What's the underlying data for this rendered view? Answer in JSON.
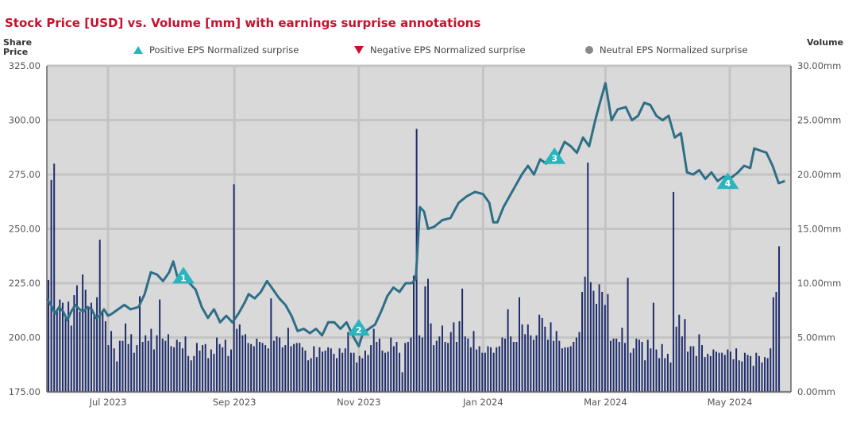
{
  "title": "Stock Price [USD] vs. Volume [mm] with earnings surprise annotations",
  "colors": {
    "title": "#c8102e",
    "price_line": "#2e6e87",
    "volume_bars": "#1f2d6b",
    "positive": "#2ab5bd",
    "negative": "#c8102e",
    "neutral": "#888888",
    "plot_bg": "#d9d9d9",
    "grid": "#c4c4c4"
  },
  "legend": {
    "positive": "Positive EPS Normalized surprise",
    "negative": "Negative EPS Normalized surprise",
    "neutral": "Neutral EPS Normalized surprise"
  },
  "chart_data": {
    "type": "line+bar",
    "title": "Stock Price [USD] vs. Volume [mm] with earnings surprise annotations",
    "y_left_label": "Share Price",
    "y_right_label": "Volume",
    "y_left_range": [
      175,
      325
    ],
    "y_right_range": [
      0,
      30
    ],
    "y_left_ticks": [
      "325.00",
      "300.00",
      "275.00",
      "250.00",
      "225.00",
      "200.00",
      "175.00"
    ],
    "y_right_ticks": [
      "30.00mm",
      "25.00mm",
      "20.00mm",
      "15.00mm",
      "10.00mm",
      "5.00mm",
      "0.00mm"
    ],
    "x_range": [
      "2023-06-01",
      "2024-05-31"
    ],
    "x_ticks": [
      {
        "date": "2023-07-01",
        "label": "Jul 2023"
      },
      {
        "date": "2023-09-01",
        "label": "Sep 2023"
      },
      {
        "date": "2023-11-01",
        "label": "Nov 2023"
      },
      {
        "date": "2024-01-01",
        "label": "Jan 2024"
      },
      {
        "date": "2024-03-01",
        "label": "Mar 2024"
      },
      {
        "date": "2024-05-01",
        "label": "May 2024"
      }
    ],
    "grid": true,
    "legend_position": "top",
    "series": [
      {
        "name": "Share Price",
        "kind": "line",
        "axis": "left",
        "points": [
          [
            "2023-06-01",
            218
          ],
          [
            "2023-06-03",
            215
          ],
          [
            "2023-06-05",
            211
          ],
          [
            "2023-06-07",
            214
          ],
          [
            "2023-06-09",
            212
          ],
          [
            "2023-06-11",
            208
          ],
          [
            "2023-06-13",
            212
          ],
          [
            "2023-06-15",
            215
          ],
          [
            "2023-06-17",
            213
          ],
          [
            "2023-06-19",
            212
          ],
          [
            "2023-06-21",
            214
          ],
          [
            "2023-06-23",
            213
          ],
          [
            "2023-06-25",
            209
          ],
          [
            "2023-06-27",
            210
          ],
          [
            "2023-06-29",
            213
          ],
          [
            "2023-07-01",
            210
          ],
          [
            "2023-07-03",
            211
          ],
          [
            "2023-07-06",
            213
          ],
          [
            "2023-07-09",
            215
          ],
          [
            "2023-07-12",
            213
          ],
          [
            "2023-07-16",
            214
          ],
          [
            "2023-07-19",
            220
          ],
          [
            "2023-07-22",
            230
          ],
          [
            "2023-07-25",
            229
          ],
          [
            "2023-07-28",
            226
          ],
          [
            "2023-07-31",
            230
          ],
          [
            "2023-08-02",
            235
          ],
          [
            "2023-08-04",
            228
          ],
          [
            "2023-08-06",
            227
          ],
          [
            "2023-08-08",
            228
          ],
          [
            "2023-08-10",
            225
          ],
          [
            "2023-08-13",
            222
          ],
          [
            "2023-08-16",
            214
          ],
          [
            "2023-08-19",
            209
          ],
          [
            "2023-08-22",
            213
          ],
          [
            "2023-08-25",
            207
          ],
          [
            "2023-08-28",
            210
          ],
          [
            "2023-08-31",
            207
          ],
          [
            "2023-09-03",
            211
          ],
          [
            "2023-09-06",
            216
          ],
          [
            "2023-09-08",
            220
          ],
          [
            "2023-09-11",
            218
          ],
          [
            "2023-09-14",
            221
          ],
          [
            "2023-09-17",
            226
          ],
          [
            "2023-09-20",
            222
          ],
          [
            "2023-09-23",
            218
          ],
          [
            "2023-09-26",
            215
          ],
          [
            "2023-09-29",
            210
          ],
          [
            "2023-10-02",
            203
          ],
          [
            "2023-10-05",
            204
          ],
          [
            "2023-10-08",
            202
          ],
          [
            "2023-10-11",
            204
          ],
          [
            "2023-10-14",
            201
          ],
          [
            "2023-10-17",
            207
          ],
          [
            "2023-10-20",
            207
          ],
          [
            "2023-10-23",
            204
          ],
          [
            "2023-10-26",
            207
          ],
          [
            "2023-10-29",
            201
          ],
          [
            "2023-11-01",
            196
          ],
          [
            "2023-11-03",
            202
          ],
          [
            "2023-11-06",
            204
          ],
          [
            "2023-11-09",
            206
          ],
          [
            "2023-11-12",
            212
          ],
          [
            "2023-11-15",
            219
          ],
          [
            "2023-11-18",
            223
          ],
          [
            "2023-11-21",
            221
          ],
          [
            "2023-11-24",
            225
          ],
          [
            "2023-11-27",
            225
          ],
          [
            "2023-11-29",
            227
          ],
          [
            "2023-12-01",
            260
          ],
          [
            "2023-12-03",
            258
          ],
          [
            "2023-12-05",
            250
          ],
          [
            "2023-12-08",
            251
          ],
          [
            "2023-12-12",
            254
          ],
          [
            "2023-12-16",
            255
          ],
          [
            "2023-12-20",
            262
          ],
          [
            "2023-12-24",
            265
          ],
          [
            "2023-12-28",
            267
          ],
          [
            "2024-01-01",
            266
          ],
          [
            "2024-01-04",
            262
          ],
          [
            "2024-01-06",
            253
          ],
          [
            "2024-01-08",
            253
          ],
          [
            "2024-01-11",
            260
          ],
          [
            "2024-01-14",
            265
          ],
          [
            "2024-01-17",
            270
          ],
          [
            "2024-01-20",
            275
          ],
          [
            "2024-01-23",
            279
          ],
          [
            "2024-01-26",
            275
          ],
          [
            "2024-01-29",
            282
          ],
          [
            "2024-02-01",
            280
          ],
          [
            "2024-02-04",
            285
          ],
          [
            "2024-02-07",
            284
          ],
          [
            "2024-02-10",
            290
          ],
          [
            "2024-02-13",
            288
          ],
          [
            "2024-02-16",
            285
          ],
          [
            "2024-02-19",
            292
          ],
          [
            "2024-02-22",
            288
          ],
          [
            "2024-02-25",
            300
          ],
          [
            "2024-02-27",
            307
          ],
          [
            "2024-03-01",
            317
          ],
          [
            "2024-03-04",
            300
          ],
          [
            "2024-03-07",
            305
          ],
          [
            "2024-03-11",
            306
          ],
          [
            "2024-03-14",
            300
          ],
          [
            "2024-03-17",
            302
          ],
          [
            "2024-03-20",
            308
          ],
          [
            "2024-03-23",
            307
          ],
          [
            "2024-03-26",
            302
          ],
          [
            "2024-03-29",
            300
          ],
          [
            "2024-04-01",
            302
          ],
          [
            "2024-04-04",
            292
          ],
          [
            "2024-04-07",
            294
          ],
          [
            "2024-04-10",
            276
          ],
          [
            "2024-04-13",
            275
          ],
          [
            "2024-04-16",
            277
          ],
          [
            "2024-04-19",
            273
          ],
          [
            "2024-04-22",
            276
          ],
          [
            "2024-04-25",
            272
          ],
          [
            "2024-04-28",
            274
          ],
          [
            "2024-05-01",
            273
          ],
          [
            "2024-05-05",
            276
          ],
          [
            "2024-05-08",
            279
          ],
          [
            "2024-05-11",
            278
          ],
          [
            "2024-05-13",
            287
          ],
          [
            "2024-05-16",
            286
          ],
          [
            "2024-05-19",
            285
          ],
          [
            "2024-05-22",
            279
          ],
          [
            "2024-05-25",
            271
          ],
          [
            "2024-05-28",
            272
          ]
        ]
      },
      {
        "name": "Volume",
        "kind": "bar",
        "axis": "right",
        "start_date": "2023-06-01",
        "step_days": 1.4,
        "values": [
          10.3,
          19.5,
          21,
          7.6,
          8.5,
          8.2,
          7,
          8.3,
          6.1,
          8.9,
          9.8,
          7.4,
          10.8,
          9.4,
          7.7,
          8.2,
          7,
          8.7,
          14,
          7.5,
          6.5,
          4.3,
          5.6,
          4,
          2.8,
          4.7,
          4.7,
          6.3,
          4.4,
          5.3,
          3.6,
          4.3,
          8.8,
          4.6,
          5.2,
          4.7,
          5.8,
          3.9,
          5.2,
          8.5,
          4.9,
          4.7,
          5.3,
          4.2,
          4.1,
          4.8,
          4.6,
          4,
          5.1,
          3.3,
          2.9,
          3.3,
          4.5,
          3.8,
          4.3,
          4.4,
          3.1,
          3.9,
          3.5,
          5,
          4.4,
          4.1,
          4.8,
          3.3,
          3.9,
          19.1,
          5.8,
          6.2,
          5.2,
          5.3,
          4.5,
          4.4,
          4.2,
          4.9,
          4.6,
          4.5,
          4.3,
          4,
          8.6,
          4.7,
          5.1,
          5,
          4.1,
          4.3,
          5.9,
          4.2,
          4.4,
          4.5,
          4.5,
          4.1,
          3.8,
          2.9,
          3.1,
          4.2,
          3.2,
          4.1,
          3.7,
          3.8,
          4.1,
          4,
          3.5,
          3.1,
          4,
          3.6,
          4,
          5.5,
          3.6,
          3.6,
          2.7,
          3.3,
          3.1,
          3.8,
          3.4,
          4.3,
          5.8,
          4.6,
          4.9,
          3.8,
          3.6,
          3.7,
          5,
          4.2,
          4.6,
          3.6,
          1.8,
          4.5,
          4.6,
          5,
          10.7,
          24.2,
          5.2,
          5,
          9.7,
          10.4,
          6.3,
          4.3,
          4.7,
          5.1,
          6.1,
          4.6,
          4.5,
          5.5,
          6.4,
          4.6,
          6.5,
          9.5,
          5.1,
          4.9,
          4.1,
          5.6,
          3.9,
          4.2,
          3.6,
          3.6,
          4.2,
          4.1,
          3.6,
          4.1,
          4.2,
          5,
          4.9,
          7.6,
          5.1,
          4.6,
          4.6,
          8.7,
          6.2,
          5.3,
          6.2,
          5.2,
          4.8,
          5.2,
          7.1,
          6.8,
          6,
          4.8,
          6.4,
          4.7,
          5.6,
          4.7,
          4,
          4.1,
          4.1,
          4.2,
          4.6,
          5,
          5.5,
          9.2,
          10.6,
          21.1,
          10.1,
          9.3,
          8.1,
          9.9,
          9.2,
          8,
          9,
          4.7,
          4.9,
          4.9,
          4.6,
          5.9,
          4.5,
          10.5,
          3.6,
          4,
          4.9,
          4.8,
          4.6,
          2.9,
          4.8,
          4,
          8.2,
          3.9,
          3.1,
          4.4,
          3.1,
          3.5,
          2.7,
          18.4,
          6,
          7.1,
          5.1,
          6.7,
          3.7,
          4.2,
          4.2,
          3.3,
          5.3,
          4.3,
          3.2,
          3.5,
          3.3,
          3.9,
          3.7,
          3.6,
          3.6,
          3.4,
          3.9,
          3.7,
          3,
          4,
          2.9,
          2.8,
          3.6,
          3.4,
          3.3,
          2.4,
          3.6,
          3.3,
          2.7,
          3.2,
          3.1,
          4,
          8.7,
          9.2,
          13.4
        ]
      }
    ],
    "annotations": [
      {
        "label": "1",
        "type": "positive",
        "date": "2023-08-07",
        "price": 228.5
      },
      {
        "label": "2",
        "type": "positive",
        "date": "2023-11-01",
        "price": 204.5
      },
      {
        "label": "3",
        "type": "positive",
        "date": "2024-02-05",
        "price": 283.5
      },
      {
        "label": "4",
        "type": "positive",
        "date": "2024-04-30",
        "price": 272
      }
    ]
  }
}
